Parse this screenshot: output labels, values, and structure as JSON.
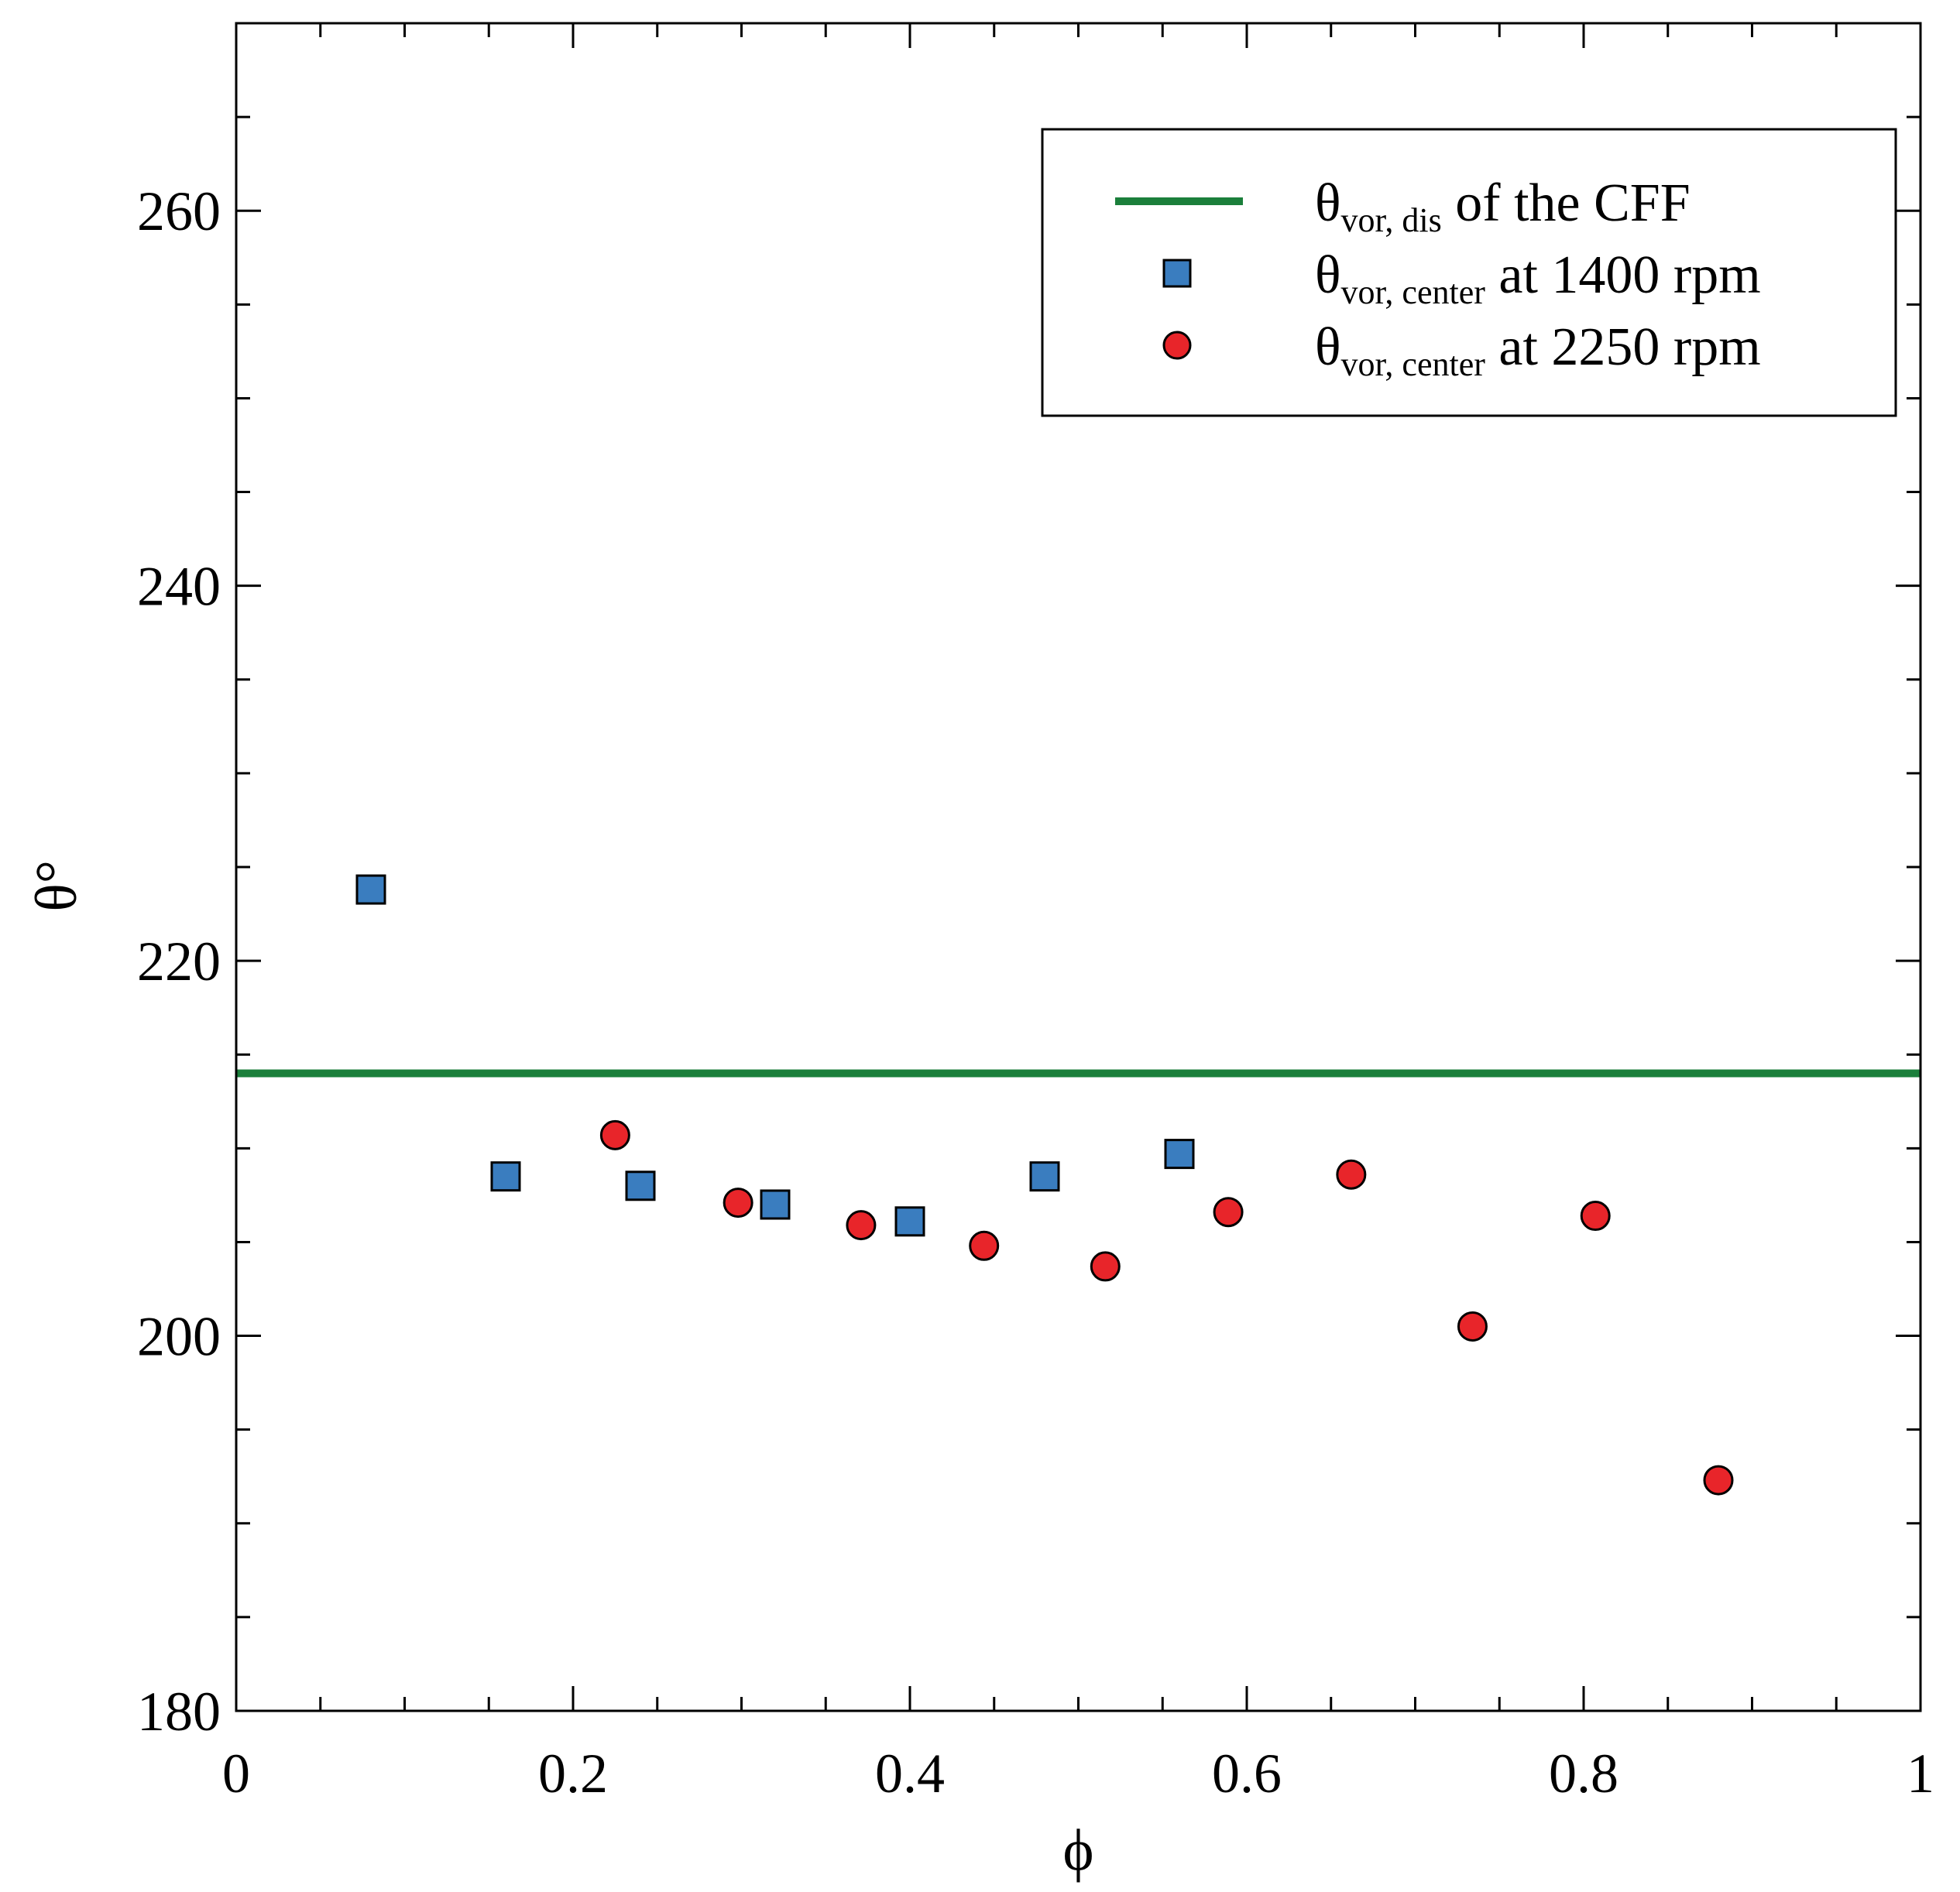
{
  "chart_data": {
    "type": "scatter",
    "title": "",
    "xlabel": "ϕ",
    "ylabel": "θ°",
    "xlim": [
      0,
      1
    ],
    "ylim": [
      180,
      270
    ],
    "x_major_ticks": [
      0,
      0.2,
      0.4,
      0.6,
      0.8,
      1
    ],
    "x_tick_labels": [
      "0",
      "0.2",
      "0.4",
      "0.6",
      "0.8",
      "1"
    ],
    "x_minor_ticks": [
      0.05,
      0.1,
      0.15,
      0.25,
      0.3,
      0.35,
      0.45,
      0.5,
      0.55,
      0.65,
      0.7,
      0.75,
      0.85,
      0.9,
      0.95
    ],
    "y_major_ticks": [
      180,
      200,
      220,
      240,
      260
    ],
    "y_tick_labels": [
      "180",
      "200",
      "220",
      "240",
      "260"
    ],
    "y_minor_ticks": [
      185,
      190,
      195,
      205,
      210,
      215,
      225,
      230,
      235,
      245,
      250,
      255,
      265
    ],
    "grid": false,
    "legend_position": "top-right",
    "reference_lines": [
      {
        "name": "θvor, dis of the CFF",
        "legend_main": "θ",
        "legend_sub": "vor, dis",
        "legend_rest": "of the CFF",
        "y": 214,
        "color": "#1b7f3b"
      }
    ],
    "series": [
      {
        "name": "θvor, center at 1400 rpm",
        "legend_main": "θ",
        "legend_sub": "vor, center",
        "legend_rest": "at 1400 rpm",
        "marker": "square",
        "color": "#3a7dbf",
        "points": [
          {
            "x": 0.08,
            "y": 223.8
          },
          {
            "x": 0.16,
            "y": 208.5
          },
          {
            "x": 0.24,
            "y": 208.0
          },
          {
            "x": 0.32,
            "y": 207.0
          },
          {
            "x": 0.4,
            "y": 206.1
          },
          {
            "x": 0.48,
            "y": 208.5
          },
          {
            "x": 0.56,
            "y": 209.7
          }
        ]
      },
      {
        "name": "θvor, center at 2250 rpm",
        "legend_main": "θ",
        "legend_sub": "vor, center",
        "legend_rest": "at 2250 rpm",
        "marker": "circle",
        "color": "#e8252a",
        "points": [
          {
            "x": 0.225,
            "y": 210.7
          },
          {
            "x": 0.298,
            "y": 207.1
          },
          {
            "x": 0.371,
            "y": 205.9
          },
          {
            "x": 0.444,
            "y": 204.8
          },
          {
            "x": 0.516,
            "y": 203.7
          },
          {
            "x": 0.589,
            "y": 206.6
          },
          {
            "x": 0.662,
            "y": 208.6
          },
          {
            "x": 0.734,
            "y": 200.5
          },
          {
            "x": 0.807,
            "y": 206.4
          },
          {
            "x": 0.88,
            "y": 192.3
          }
        ]
      }
    ]
  }
}
